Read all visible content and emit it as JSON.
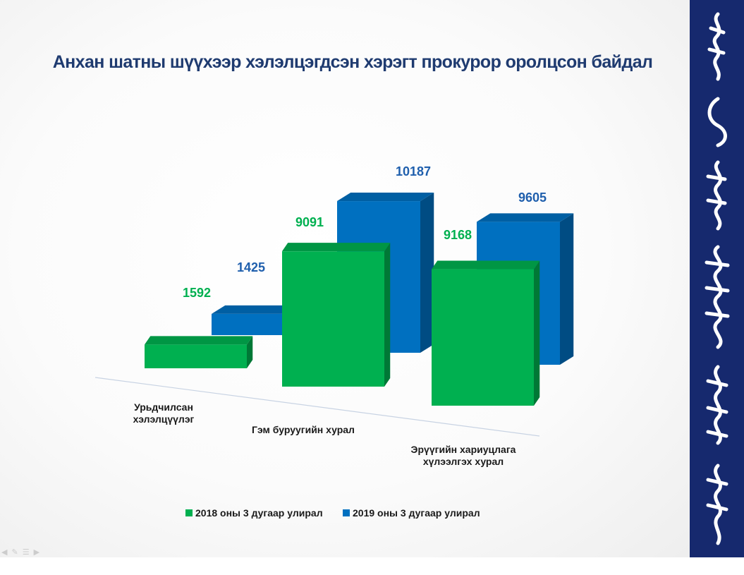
{
  "slide": {
    "title": "Анхан шатны шүүхээр хэлэлцэгдсэн хэрэгт прокурор оролцсон байдал"
  },
  "colors": {
    "series_2018": "#00b050",
    "series_2019": "#0070c0",
    "label_2018": "#00b050",
    "label_2019": "#1f5fad",
    "strip": "#16296e"
  },
  "chart_data": {
    "type": "bar",
    "title": "Анхан шатны шүүхээр хэлэлцэгдсэн хэрэгт прокурор оролцсон байдал",
    "categories": [
      "Урьдчилсан хэлэлцүүлэг",
      "Гэм буруугийн хурал",
      "Эрүүгийн хариуцлага хүлээлгэх хурал"
    ],
    "series": [
      {
        "name": "2018 оны 3 дугаар улирал",
        "values": [
          1592,
          9091,
          9168
        ]
      },
      {
        "name": "2019 оны 3 дугаар улирал",
        "values": [
          1425,
          10187,
          9605
        ]
      }
    ],
    "style": "3d",
    "grid": false,
    "legend": "bottom"
  },
  "side_strip": {
    "icon": "mongolian-script-icon"
  },
  "controls": {
    "icons": [
      "prev-icon",
      "pen-icon",
      "menu-icon",
      "next-icon"
    ]
  }
}
